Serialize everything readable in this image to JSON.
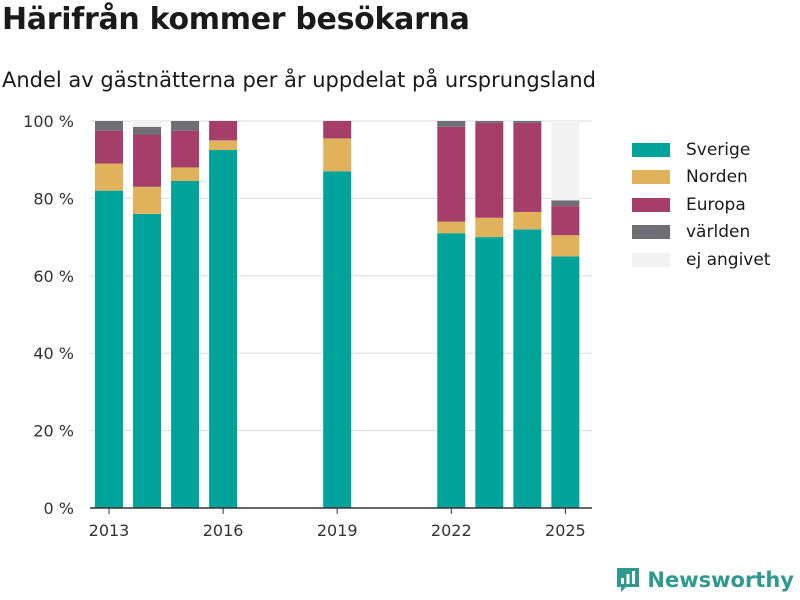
{
  "header": {
    "title": "Härifrån kommer besökarna",
    "subtitle": "Andel av gästnätterna per år uppdelat på ursprungsland"
  },
  "brand": {
    "name": "Newsworthy",
    "icon": "newsworthy-logo-icon",
    "color": "#2e9a8f"
  },
  "chart_data": {
    "type": "bar",
    "stacked": true,
    "categories": [
      "2013",
      "2014",
      "2015",
      "2016",
      "2019",
      "2022",
      "2023",
      "2024",
      "2025"
    ],
    "x_ticks": [
      "2013",
      "2016",
      "2019",
      "2022",
      "2025"
    ],
    "y_ticks": [
      "0 %",
      "20 %",
      "40 %",
      "60 %",
      "80 %",
      "100 %"
    ],
    "ylim": [
      0,
      100
    ],
    "grid": true,
    "legend_position": "right",
    "series": [
      {
        "name": "Sverige",
        "color": "#00a39a",
        "values": [
          82,
          76,
          84.5,
          92.5,
          87,
          71,
          70,
          72,
          65
        ]
      },
      {
        "name": "Norden",
        "color": "#dfb25b",
        "values": [
          7,
          7,
          3.5,
          2.5,
          8.5,
          3,
          5,
          4.5,
          5.5
        ]
      },
      {
        "name": "Europa",
        "color": "#a53f69",
        "values": [
          8.5,
          13.5,
          9.5,
          5,
          4.5,
          24.5,
          24.5,
          23,
          7.5
        ]
      },
      {
        "name": "världen",
        "color": "#6e6e74",
        "values": [
          2.5,
          2,
          2.5,
          0,
          0,
          1.5,
          0.5,
          0.5,
          1.5
        ]
      },
      {
        "name": "ej angivet",
        "color": "#f2f2f2",
        "values": [
          0,
          1.5,
          0,
          0,
          0,
          0,
          0,
          0,
          20.5
        ]
      }
    ]
  }
}
